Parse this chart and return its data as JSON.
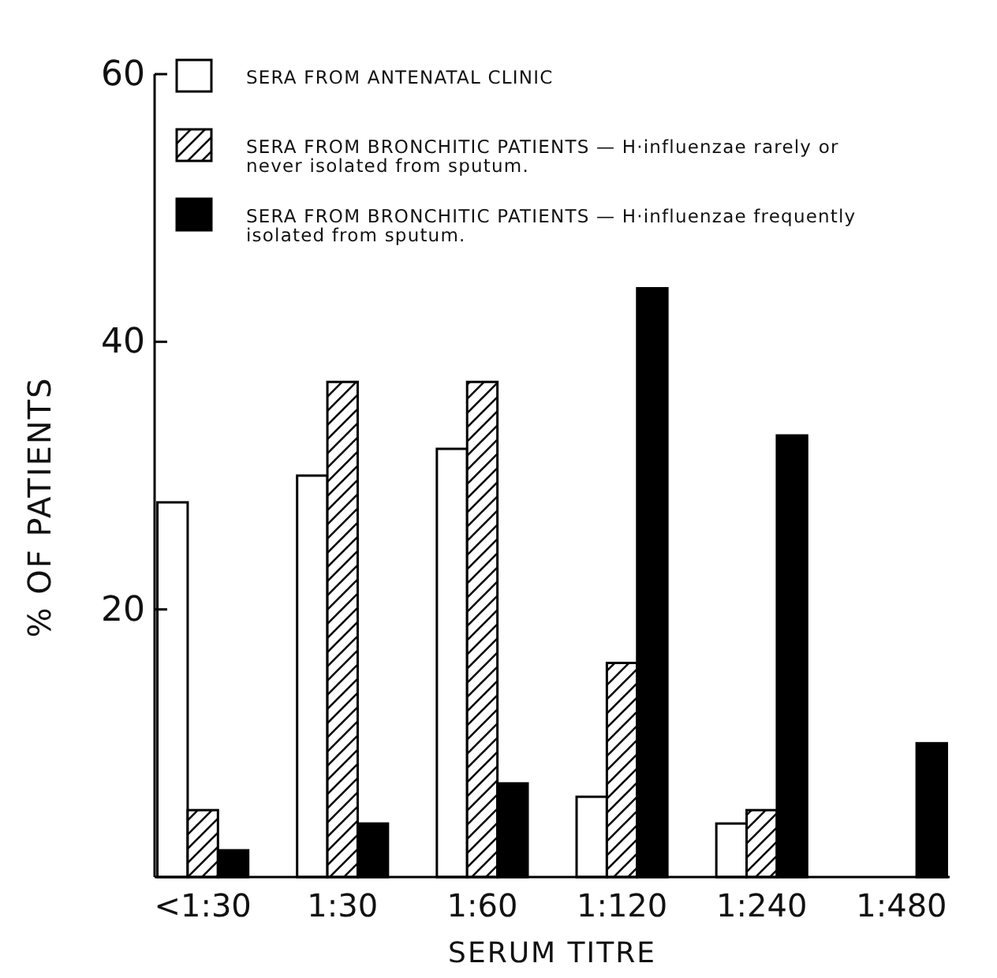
{
  "chart_data": {
    "type": "bar",
    "xlabel": "SERUM TITRE",
    "ylabel": "% OF PATIENTS",
    "categories": [
      "<1:30",
      "1:30",
      "1:60",
      "1:120",
      "1:240",
      "1:480"
    ],
    "series": [
      {
        "name": "SERA FROM ANTENATAL CLINIC",
        "color": "#ffffff",
        "values": [
          28,
          30,
          32,
          6,
          4,
          null
        ]
      },
      {
        "name": "SERA FROM BRONCHITIC PATIENTS — H·influenzae rarely or never isolated from sputum.",
        "color": "#000000",
        "values": [
          5,
          37,
          37,
          16,
          5,
          null
        ]
      },
      {
        "name": "SERA FROM BRONCHITIC PATIENTS — H·influenzae frequently isolated from sputum.",
        "color": "#000000",
        "values": [
          2,
          4,
          7,
          44,
          33,
          10
        ]
      }
    ],
    "ylim": [
      0,
      60
    ],
    "yticks": [
      20,
      40,
      60
    ],
    "legend": "top",
    "grid": false
  }
}
